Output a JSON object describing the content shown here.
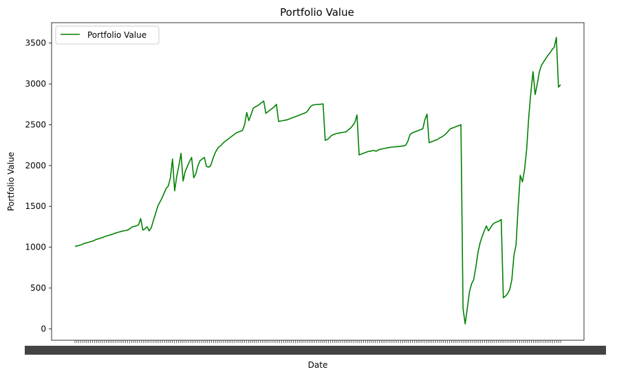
{
  "chart_data": {
    "type": "line",
    "title": "Portfolio Value",
    "xlabel": "Date",
    "ylabel": "Portfolio Value",
    "ylim": [
      -140,
      3750
    ],
    "yticks": [
      0,
      500,
      1000,
      1500,
      2000,
      2500,
      3000,
      3500
    ],
    "grid": false,
    "legend_position": "top-left",
    "line_color": "#008000",
    "x_tick_count": 250,
    "series": [
      {
        "name": "Portfolio Value",
        "values": [
          1010,
          1015,
          1022,
          1030,
          1042,
          1050,
          1058,
          1065,
          1072,
          1082,
          1095,
          1102,
          1110,
          1118,
          1130,
          1138,
          1145,
          1153,
          1162,
          1172,
          1180,
          1187,
          1195,
          1200,
          1205,
          1212,
          1230,
          1248,
          1255,
          1262,
          1275,
          1350,
          1210,
          1225,
          1250,
          1200,
          1240,
          1330,
          1410,
          1500,
          1550,
          1600,
          1660,
          1720,
          1750,
          1850,
          2080,
          1690,
          1870,
          2000,
          2150,
          1810,
          1930,
          1990,
          2050,
          2100,
          1850,
          1900,
          2000,
          2060,
          2080,
          2100,
          1990,
          1980,
          2000,
          2080,
          2150,
          2200,
          2230,
          2250,
          2280,
          2300,
          2320,
          2340,
          2360,
          2380,
          2400,
          2410,
          2420,
          2430,
          2500,
          2650,
          2550,
          2620,
          2700,
          2720,
          2730,
          2750,
          2770,
          2790,
          2640,
          2660,
          2680,
          2700,
          2720,
          2750,
          2540,
          2545,
          2550,
          2555,
          2560,
          2570,
          2580,
          2590,
          2600,
          2610,
          2620,
          2630,
          2640,
          2650,
          2680,
          2720,
          2740,
          2745,
          2748,
          2750,
          2752,
          2755,
          2310,
          2320,
          2340,
          2370,
          2380,
          2390,
          2395,
          2400,
          2405,
          2410,
          2415,
          2440,
          2460,
          2490,
          2530,
          2620,
          2130,
          2140,
          2150,
          2160,
          2170,
          2175,
          2180,
          2185,
          2175,
          2190,
          2200,
          2205,
          2210,
          2215,
          2220,
          2225,
          2228,
          2230,
          2232,
          2235,
          2238,
          2240,
          2250,
          2300,
          2380,
          2400,
          2410,
          2420,
          2430,
          2440,
          2450,
          2560,
          2630,
          2280,
          2290,
          2300,
          2310,
          2320,
          2340,
          2350,
          2370,
          2390,
          2420,
          2450,
          2460,
          2470,
          2480,
          2490,
          2500,
          250,
          60,
          250,
          450,
          550,
          600,
          750,
          930,
          1050,
          1130,
          1200,
          1260,
          1200,
          1240,
          1280,
          1300,
          1310,
          1320,
          1340,
          380,
          400,
          430,
          480,
          600,
          900,
          1030,
          1500,
          1880,
          1800,
          1950,
          2200,
          2600,
          2900,
          3150,
          2870,
          3000,
          3150,
          3230,
          3270,
          3310,
          3350,
          3380,
          3420,
          3450,
          3570,
          2960,
          2990
        ]
      }
    ]
  }
}
